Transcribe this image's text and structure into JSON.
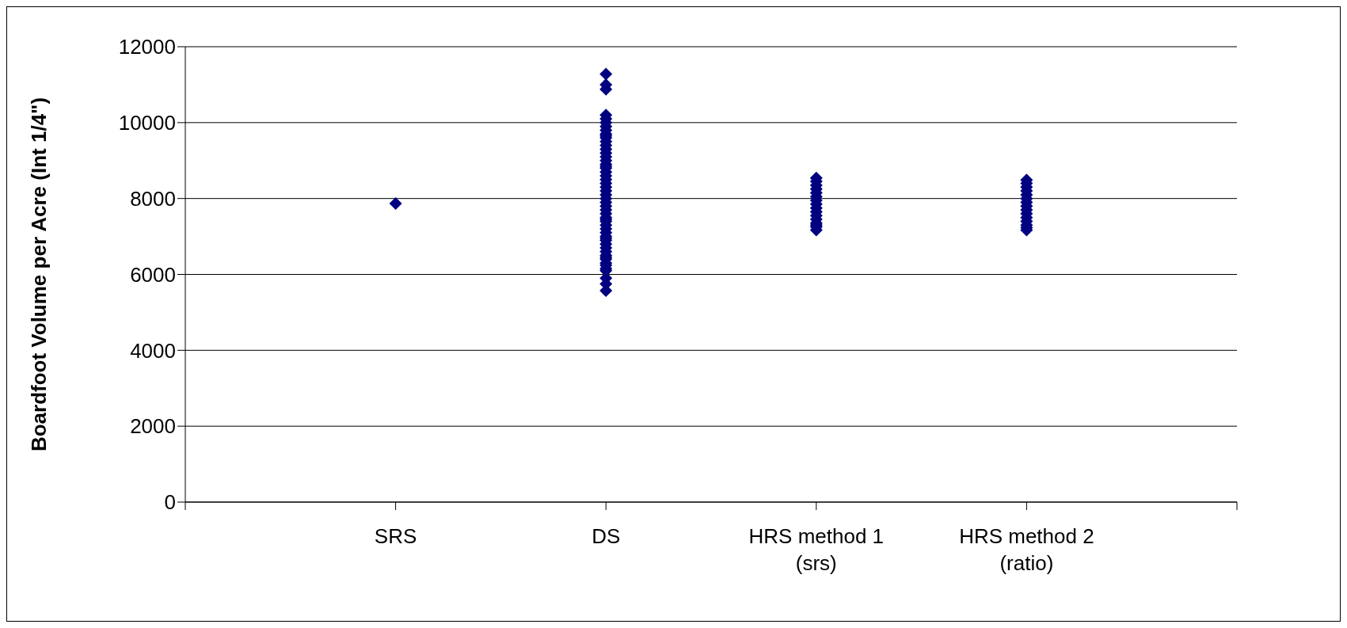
{
  "chart_data": {
    "type": "scatter",
    "ylabel": "Boardfoot Volume per Acre (Int 1/4\")",
    "categories": [
      null,
      "SRS",
      "DS",
      "HRS method 1\n(srs)",
      "HRS method 2\n(ratio)",
      null
    ],
    "ylim": [
      0,
      12000
    ],
    "yticks": [
      0,
      2000,
      4000,
      6000,
      8000,
      10000,
      12000
    ],
    "grid": "y",
    "marker": "diamond",
    "legend": false,
    "series": [
      {
        "color": "#000080",
        "x": [
          "SRS",
          "DS",
          "DS",
          "DS",
          "DS",
          "DS",
          "DS",
          "DS",
          "DS",
          "DS",
          "DS",
          "DS",
          "DS",
          "DS",
          "DS",
          "DS",
          "DS",
          "DS",
          "DS",
          "DS",
          "DS",
          "DS",
          "DS",
          "DS",
          "DS",
          "DS",
          "DS",
          "DS",
          "DS",
          "DS",
          "DS",
          "DS",
          "DS",
          "DS",
          "DS",
          "DS",
          "DS",
          "DS",
          "DS",
          "DS",
          "DS",
          "DS",
          "DS",
          "DS",
          "DS",
          "DS",
          "DS",
          "DS",
          "DS",
          "DS",
          "DS",
          "DS",
          "DS",
          "DS",
          "DS",
          "HRS method 1\n(srs)",
          "HRS method 1\n(srs)",
          "HRS method 1\n(srs)",
          "HRS method 1\n(srs)",
          "HRS method 1\n(srs)",
          "HRS method 1\n(srs)",
          "HRS method 1\n(srs)",
          "HRS method 1\n(srs)",
          "HRS method 1\n(srs)",
          "HRS method 1\n(srs)",
          "HRS method 1\n(srs)",
          "HRS method 1\n(srs)",
          "HRS method 1\n(srs)",
          "HRS method 1\n(srs)",
          "HRS method 1\n(srs)",
          "HRS method 1\n(srs)",
          "HRS method 2\n(ratio)",
          "HRS method 2\n(ratio)",
          "HRS method 2\n(ratio)",
          "HRS method 2\n(ratio)",
          "HRS method 2\n(ratio)",
          "HRS method 2\n(ratio)",
          "HRS method 2\n(ratio)",
          "HRS method 2\n(ratio)",
          "HRS method 2\n(ratio)",
          "HRS method 2\n(ratio)",
          "HRS method 2\n(ratio)",
          "HRS method 2\n(ratio)",
          "HRS method 2\n(ratio)",
          "HRS method 2\n(ratio)",
          "HRS method 2\n(ratio)"
        ],
        "values": [
          7870,
          11280,
          11000,
          10880,
          10200,
          10100,
          10000,
          9900,
          9800,
          9700,
          9600,
          9500,
          9400,
          9300,
          9200,
          9100,
          9000,
          8900,
          8800,
          8700,
          8600,
          8500,
          8400,
          8300,
          8200,
          8100,
          8000,
          7900,
          7800,
          7700,
          7600,
          7500,
          7400,
          7300,
          7200,
          7100,
          7000,
          6900,
          6800,
          6700,
          6600,
          6500,
          6400,
          6300,
          6240,
          6100,
          5900,
          5750,
          5570,
          9650,
          8850,
          7450,
          6950,
          6450,
          6150,
          8540,
          8450,
          8350,
          8250,
          8150,
          8050,
          7950,
          7850,
          7750,
          7650,
          7550,
          7450,
          7350,
          7300,
          7250,
          7170,
          8490,
          8400,
          8300,
          8200,
          8100,
          8000,
          7900,
          7800,
          7700,
          7600,
          7500,
          7400,
          7300,
          7230,
          7170
        ]
      }
    ]
  }
}
